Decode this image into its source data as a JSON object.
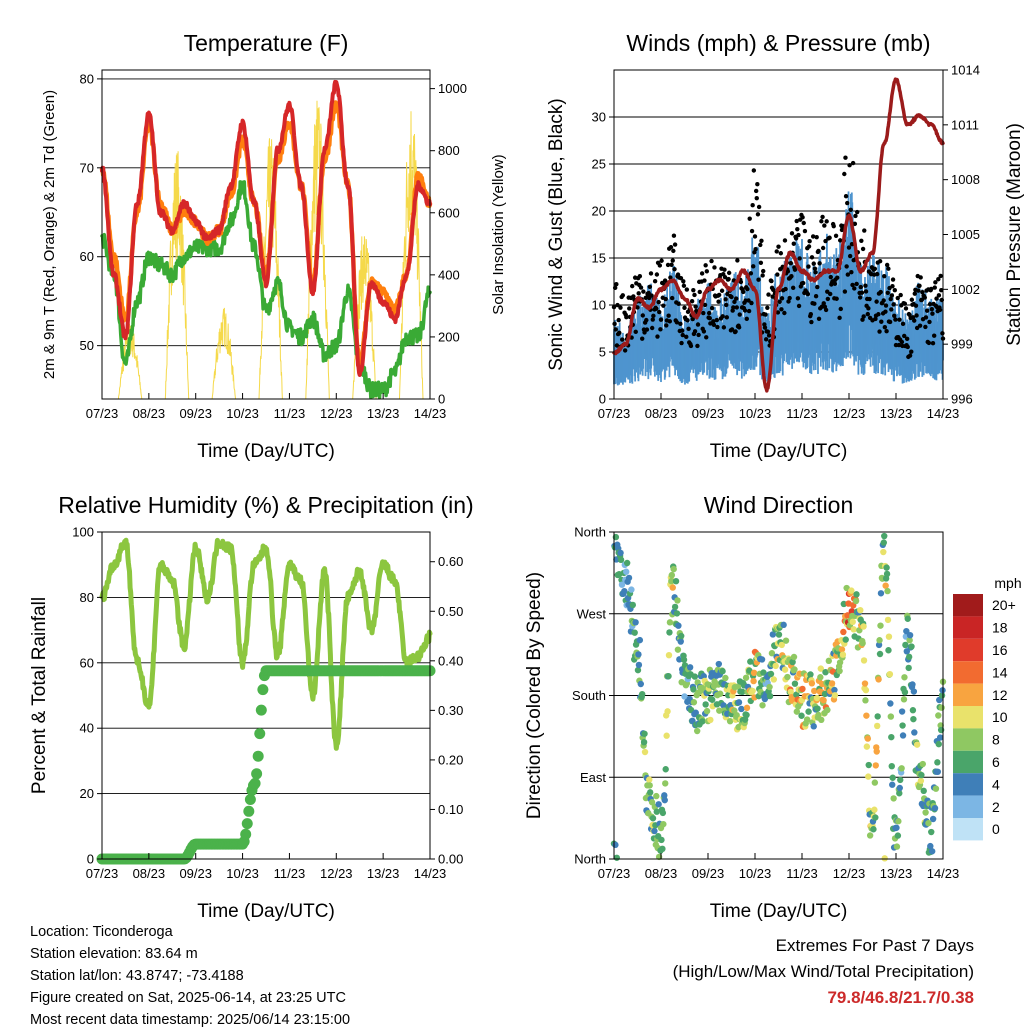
{
  "days": [
    "07/23",
    "08/23",
    "09/23",
    "10/23",
    "11/23",
    "12/23",
    "13/23",
    "14/23"
  ],
  "panels": {
    "temperature": {
      "title": "Temperature (F)",
      "ylabel": "2m & 9m T (Red, Orange) & 2m Td (Green)",
      "y2label": "Solar Insolation (Yellow)",
      "xlabel": "Time (Day/UTC)"
    },
    "wind": {
      "title": "Winds (mph) & Pressure (mb)",
      "ylabel": "Sonic Wind & Gust (Blue, Black)",
      "y2label": "Station Pressure (Maroon)",
      "xlabel": "Time (Day/UTC)"
    },
    "humidity": {
      "title": "Relative Humidity (%) & Precipitation (in)",
      "ylabel": "Percent & Total Rainfall",
      "xlabel": "Time (Day/UTC)"
    },
    "direction": {
      "title": "Wind Direction",
      "ylabel": "Direction (Colored By Speed)",
      "xlabel": "Time (Day/UTC)",
      "legend_title": "mph"
    }
  },
  "info": {
    "location": "Location: Ticonderoga",
    "elevation": "Station elevation: 83.64 m",
    "latlon": "Station lat/lon: 43.8747; -73.4188",
    "created": "Figure created on Sat, 2025-06-14, at 23:25 UTC",
    "recent": "Most recent data timestamp: 2025/06/14 23:15:00"
  },
  "extremes": {
    "line1": "Extremes For Past 7 Days",
    "line2": "(High/Low/Max Wind/Total Precipitation)",
    "values": "79.8/46.8/21.7/0.38"
  },
  "colors": {
    "t2m": "#d62728",
    "t9m": "#ff7f0e",
    "td": "#3aaa35",
    "solar": "#f5d94a",
    "wind": "#4f95cf",
    "gust": "#000000",
    "pressure": "#9b1b1b",
    "rh": "#8cc63f",
    "precip": "#4bb24b"
  },
  "chart_data": [
    {
      "type": "line",
      "name": "temperature",
      "x_days": [
        0,
        0.25,
        0.5,
        0.75,
        1,
        1.25,
        1.5,
        1.75,
        2,
        2.25,
        2.5,
        2.75,
        3,
        3.25,
        3.5,
        3.75,
        4,
        4.25,
        4.5,
        4.75,
        5,
        5.25,
        5.5,
        5.75,
        6,
        6.25,
        6.5,
        6.75,
        7
      ],
      "ylim": [
        44,
        81
      ],
      "y2lim": [
        0,
        1060
      ],
      "yticks": [
        50,
        60,
        70,
        80
      ],
      "y2ticks": [
        0,
        200,
        400,
        600,
        800,
        1000
      ],
      "series": [
        {
          "values": [
            70,
            58,
            51,
            66,
            76,
            65,
            63,
            66,
            64,
            62,
            63,
            68,
            75,
            66,
            57,
            72,
            77,
            68,
            56,
            72,
            79.5,
            68,
            47,
            57,
            55,
            53,
            58,
            68,
            66
          ]
        },
        {
          "values": [
            70,
            60,
            53,
            65,
            75,
            66,
            63,
            65,
            64,
            62,
            63,
            67,
            73,
            66,
            58,
            71,
            75,
            68,
            57,
            71,
            77,
            68,
            48,
            57,
            56,
            54,
            58,
            69,
            66
          ]
        },
        {
          "values": [
            62,
            58,
            48,
            55,
            60,
            59,
            58,
            60,
            61,
            61,
            61,
            64,
            68,
            61,
            54,
            57,
            52,
            51,
            53,
            49,
            50,
            56,
            48,
            45,
            45,
            47,
            51,
            51,
            56
          ]
        }
      ],
      "solar_peaks": [
        0.6,
        1.6,
        2.6,
        3.6,
        4.6,
        5.6,
        6.6
      ],
      "solar_values": [
        250,
        820,
        300,
        860,
        1000,
        560,
        1000
      ]
    },
    {
      "type": "scatter",
      "name": "winds",
      "x_days": [
        0,
        0.25,
        0.5,
        0.75,
        1,
        1.25,
        1.5,
        1.75,
        2,
        2.25,
        2.5,
        2.75,
        3,
        3.25,
        3.5,
        3.75,
        4,
        4.25,
        4.5,
        4.75,
        5,
        5.25,
        5.5,
        5.75,
        6,
        6.25,
        6.5,
        6.75,
        7
      ],
      "ylim": [
        0,
        35
      ],
      "y2lim": [
        996,
        1014
      ],
      "yticks": [
        0,
        5,
        10,
        15,
        20,
        25,
        30
      ],
      "y2ticks": [
        996,
        999,
        1002,
        1005,
        1008,
        1011,
        1014
      ],
      "series": [
        {
          "values": [
            5,
            4,
            6,
            7,
            6,
            8,
            5,
            6,
            7,
            6,
            8,
            7,
            10,
            5,
            8,
            9,
            10,
            8,
            10,
            9,
            13,
            8,
            9,
            8,
            6,
            5,
            7,
            6,
            6
          ]
        },
        {
          "values": [
            10,
            9,
            12,
            11,
            12,
            14,
            10,
            10,
            12,
            11,
            13,
            12,
            20,
            9,
            13,
            14,
            16,
            14,
            17,
            15,
            22,
            15,
            15,
            12,
            10,
            8,
            11,
            10,
            11
          ]
        },
        {
          "values": [
            998.5,
            999,
            1001.5,
            1001,
            1002,
            1002.5,
            1001.5,
            1000.5,
            1002,
            1002.5,
            1002,
            1003,
            1002,
            996.5,
            1002,
            1004,
            1003,
            1002.5,
            1003,
            1003,
            1006,
            1003,
            1004,
            1010,
            1013.5,
            1011,
            1011.5,
            1011,
            1010
          ]
        }
      ]
    },
    {
      "type": "line",
      "name": "humidity",
      "x_days": [
        0,
        0.25,
        0.5,
        0.75,
        1,
        1.25,
        1.5,
        1.75,
        2,
        2.25,
        2.5,
        2.75,
        3,
        3.25,
        3.5,
        3.75,
        4,
        4.25,
        4.5,
        4.75,
        5,
        5.25,
        5.5,
        5.75,
        6,
        6.25,
        6.5,
        6.75,
        7
      ],
      "ylim": [
        0,
        100
      ],
      "y2lim": [
        0,
        0.66
      ],
      "yticks": [
        0,
        20,
        40,
        60,
        80,
        100
      ],
      "y2ticks": [
        0.0,
        0.1,
        0.2,
        0.3,
        0.4,
        0.5,
        0.6
      ],
      "series": [
        {
          "values": [
            80,
            90,
            97,
            60,
            47,
            90,
            85,
            65,
            95,
            80,
            97,
            95,
            60,
            90,
            95,
            62,
            90,
            85,
            50,
            88,
            35,
            80,
            88,
            70,
            90,
            85,
            60,
            62,
            68
          ]
        },
        {
          "values": [
            0,
            0,
            0,
            0,
            0,
            0,
            0,
            0,
            0.03,
            0.03,
            0.03,
            0.03,
            0.03,
            0.15,
            0.38,
            0.38,
            0.38,
            0.38,
            0.38,
            0.38,
            0.38,
            0.38,
            0.38,
            0.38,
            0.38,
            0.38,
            0.38,
            0.38,
            0.38
          ]
        }
      ]
    },
    {
      "type": "scatter",
      "name": "wind-direction",
      "categories": [
        "North",
        "East",
        "South",
        "West",
        "North"
      ],
      "ylim": [
        0,
        360
      ],
      "legend": [
        "20+",
        "18",
        "16",
        "14",
        "12",
        "10",
        "8",
        "6",
        "4",
        "2",
        "0"
      ],
      "legend_colors": [
        "#a11b1b",
        "#c92525",
        "#e03b2b",
        "#f26b30",
        "#f8a440",
        "#e9e26b",
        "#8fc862",
        "#4aa56a",
        "#3f7fb8",
        "#7cb6e4",
        "#bfe2f6"
      ],
      "x_days": [
        0,
        0.25,
        0.5,
        0.75,
        1,
        1.25,
        1.5,
        1.75,
        2,
        2.25,
        2.5,
        2.75,
        3,
        3.25,
        3.5,
        3.75,
        4,
        4.25,
        4.5,
        4.75,
        5,
        5.25,
        5.5,
        5.75,
        6,
        6.25,
        6.5,
        6.75,
        7
      ],
      "values": [
        350,
        300,
        230,
        60,
        30,
        300,
        200,
        170,
        180,
        190,
        175,
        170,
        200,
        185,
        250,
        200,
        175,
        175,
        185,
        210,
        280,
        260,
        30,
        340,
        20,
        240,
        90,
        30,
        180
      ]
    }
  ]
}
